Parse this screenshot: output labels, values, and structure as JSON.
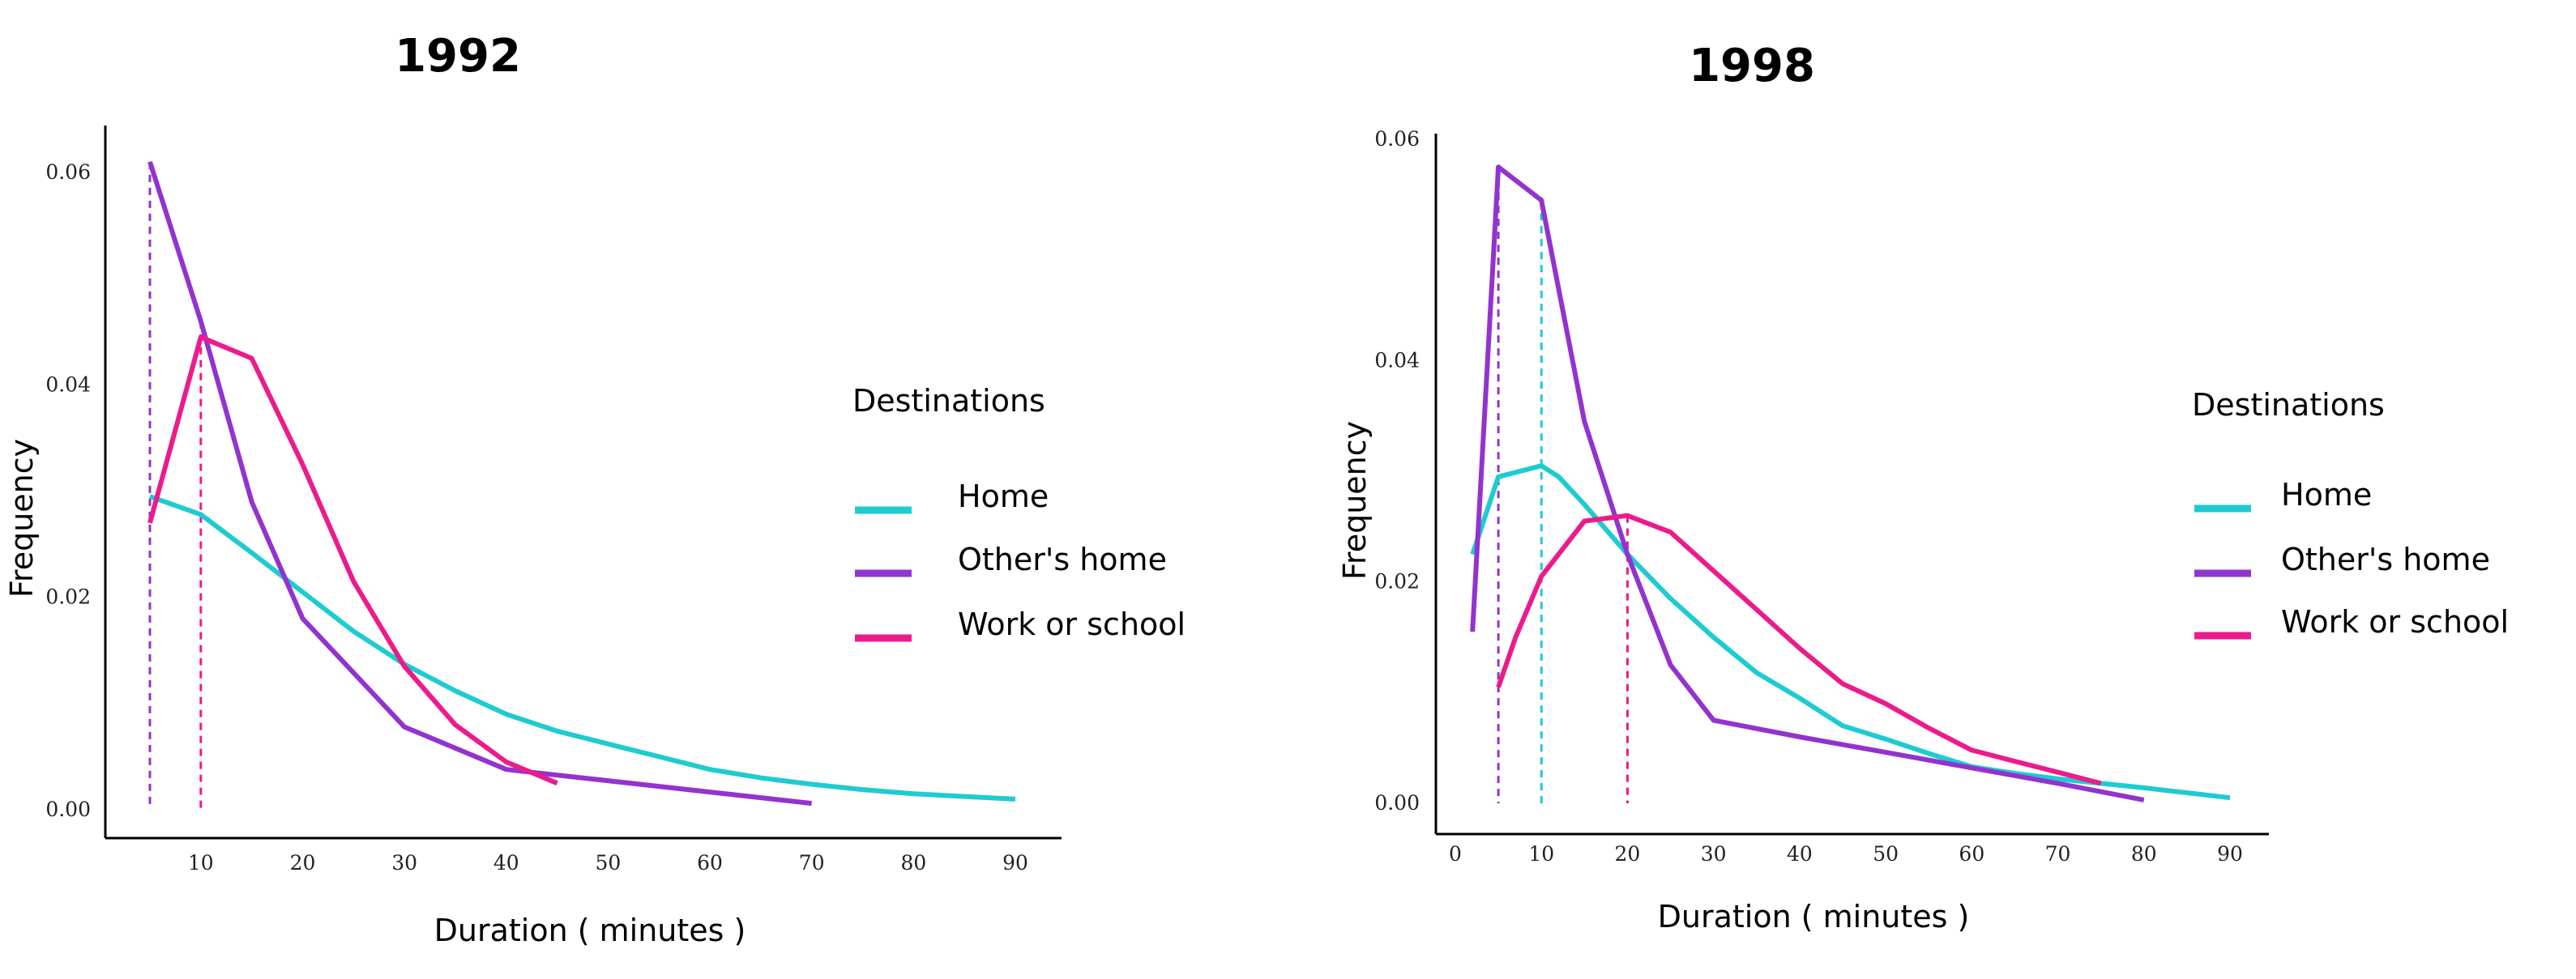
{
  "chart_data": [
    {
      "type": "line",
      "title": "1992",
      "xlabel": "Duration ( minutes )",
      "ylabel": "Frequency",
      "xticks": [
        10,
        20,
        30,
        40,
        50,
        60,
        70,
        80,
        90
      ],
      "yticks": [
        "0.00",
        "0.02",
        "0.04",
        "0.06"
      ],
      "legend_title": "Destinations",
      "series": [
        {
          "name": "Home",
          "color": "#1ecbd1",
          "points": [
            [
              5,
              0.0295
            ],
            [
              10,
              0.0278
            ],
            [
              15,
              0.0242
            ],
            [
              20,
              0.0205
            ],
            [
              25,
              0.0168
            ],
            [
              30,
              0.0137
            ],
            [
              35,
              0.0112
            ],
            [
              40,
              0.009
            ],
            [
              45,
              0.0074
            ],
            [
              50,
              0.0062
            ],
            [
              55,
              0.005
            ],
            [
              60,
              0.0038
            ],
            [
              65,
              0.003
            ],
            [
              70,
              0.0024
            ],
            [
              75,
              0.0019
            ],
            [
              80,
              0.0015
            ],
            [
              90,
              0.001
            ]
          ]
        },
        {
          "name": "Other's home",
          "color": "#9333cf",
          "points": [
            [
              5,
              0.061
            ],
            [
              10,
              0.046
            ],
            [
              15,
              0.029
            ],
            [
              20,
              0.018
            ],
            [
              30,
              0.0078
            ],
            [
              40,
              0.0038
            ],
            [
              70,
              0.0006
            ]
          ]
        },
        {
          "name": "Work or school",
          "color": "#ec1b8c",
          "points": [
            [
              5,
              0.027
            ],
            [
              10,
              0.0445
            ],
            [
              15,
              0.0425
            ],
            [
              20,
              0.0325
            ],
            [
              25,
              0.0215
            ],
            [
              30,
              0.0135
            ],
            [
              35,
              0.008
            ],
            [
              40,
              0.0045
            ],
            [
              45,
              0.0025
            ]
          ]
        }
      ],
      "reference_lines": [
        {
          "x": 5,
          "color": "#9333cf"
        },
        {
          "x": 10,
          "color": "#ec1b8c"
        }
      ]
    },
    {
      "type": "line",
      "title": "1998",
      "xlabel": "Duration ( minutes )",
      "ylabel": "Frequency",
      "xticks": [
        0,
        10,
        20,
        30,
        40,
        50,
        60,
        70,
        80,
        90
      ],
      "yticks": [
        "0.00",
        "0.02",
        "0.04",
        "0.06"
      ],
      "legend_title": "Destinations",
      "series": [
        {
          "name": "Home",
          "color": "#1ecbd1",
          "points": [
            [
              2,
              0.0225
            ],
            [
              5,
              0.0295
            ],
            [
              10,
              0.0305
            ],
            [
              12,
              0.0295
            ],
            [
              15,
              0.027
            ],
            [
              20,
              0.0225
            ],
            [
              25,
              0.0185
            ],
            [
              30,
              0.015
            ],
            [
              35,
              0.0118
            ],
            [
              40,
              0.0095
            ],
            [
              45,
              0.007
            ],
            [
              50,
              0.0058
            ],
            [
              55,
              0.0045
            ],
            [
              60,
              0.0033
            ],
            [
              65,
              0.0027
            ],
            [
              70,
              0.0022
            ],
            [
              75,
              0.0018
            ],
            [
              80,
              0.0014
            ],
            [
              90,
              0.0005
            ]
          ]
        },
        {
          "name": "Other's home",
          "color": "#9333cf",
          "points": [
            [
              2,
              0.0155
            ],
            [
              5,
              0.0575
            ],
            [
              10,
              0.0545
            ],
            [
              15,
              0.0345
            ],
            [
              20,
              0.0225
            ],
            [
              25,
              0.0125
            ],
            [
              30,
              0.0075
            ],
            [
              40,
              0.006
            ],
            [
              50,
              0.0046
            ],
            [
              60,
              0.0032
            ],
            [
              70,
              0.0018
            ],
            [
              80,
              0.0003
            ]
          ]
        },
        {
          "name": "Work or school",
          "color": "#ec1b8c",
          "points": [
            [
              5,
              0.0105
            ],
            [
              7,
              0.015
            ],
            [
              10,
              0.0205
            ],
            [
              15,
              0.0255
            ],
            [
              20,
              0.026
            ],
            [
              25,
              0.0245
            ],
            [
              30,
              0.021
            ],
            [
              35,
              0.0175
            ],
            [
              40,
              0.014
            ],
            [
              45,
              0.0108
            ],
            [
              50,
              0.009
            ],
            [
              55,
              0.0068
            ],
            [
              60,
              0.0048
            ],
            [
              65,
              0.0038
            ],
            [
              70,
              0.0028
            ],
            [
              75,
              0.0018
            ]
          ]
        }
      ],
      "reference_lines": [
        {
          "x": 5,
          "color": "#9333cf"
        },
        {
          "x": 10,
          "color": "#1ecbd1"
        },
        {
          "x": 20,
          "color": "#ec1b8c"
        }
      ]
    }
  ]
}
